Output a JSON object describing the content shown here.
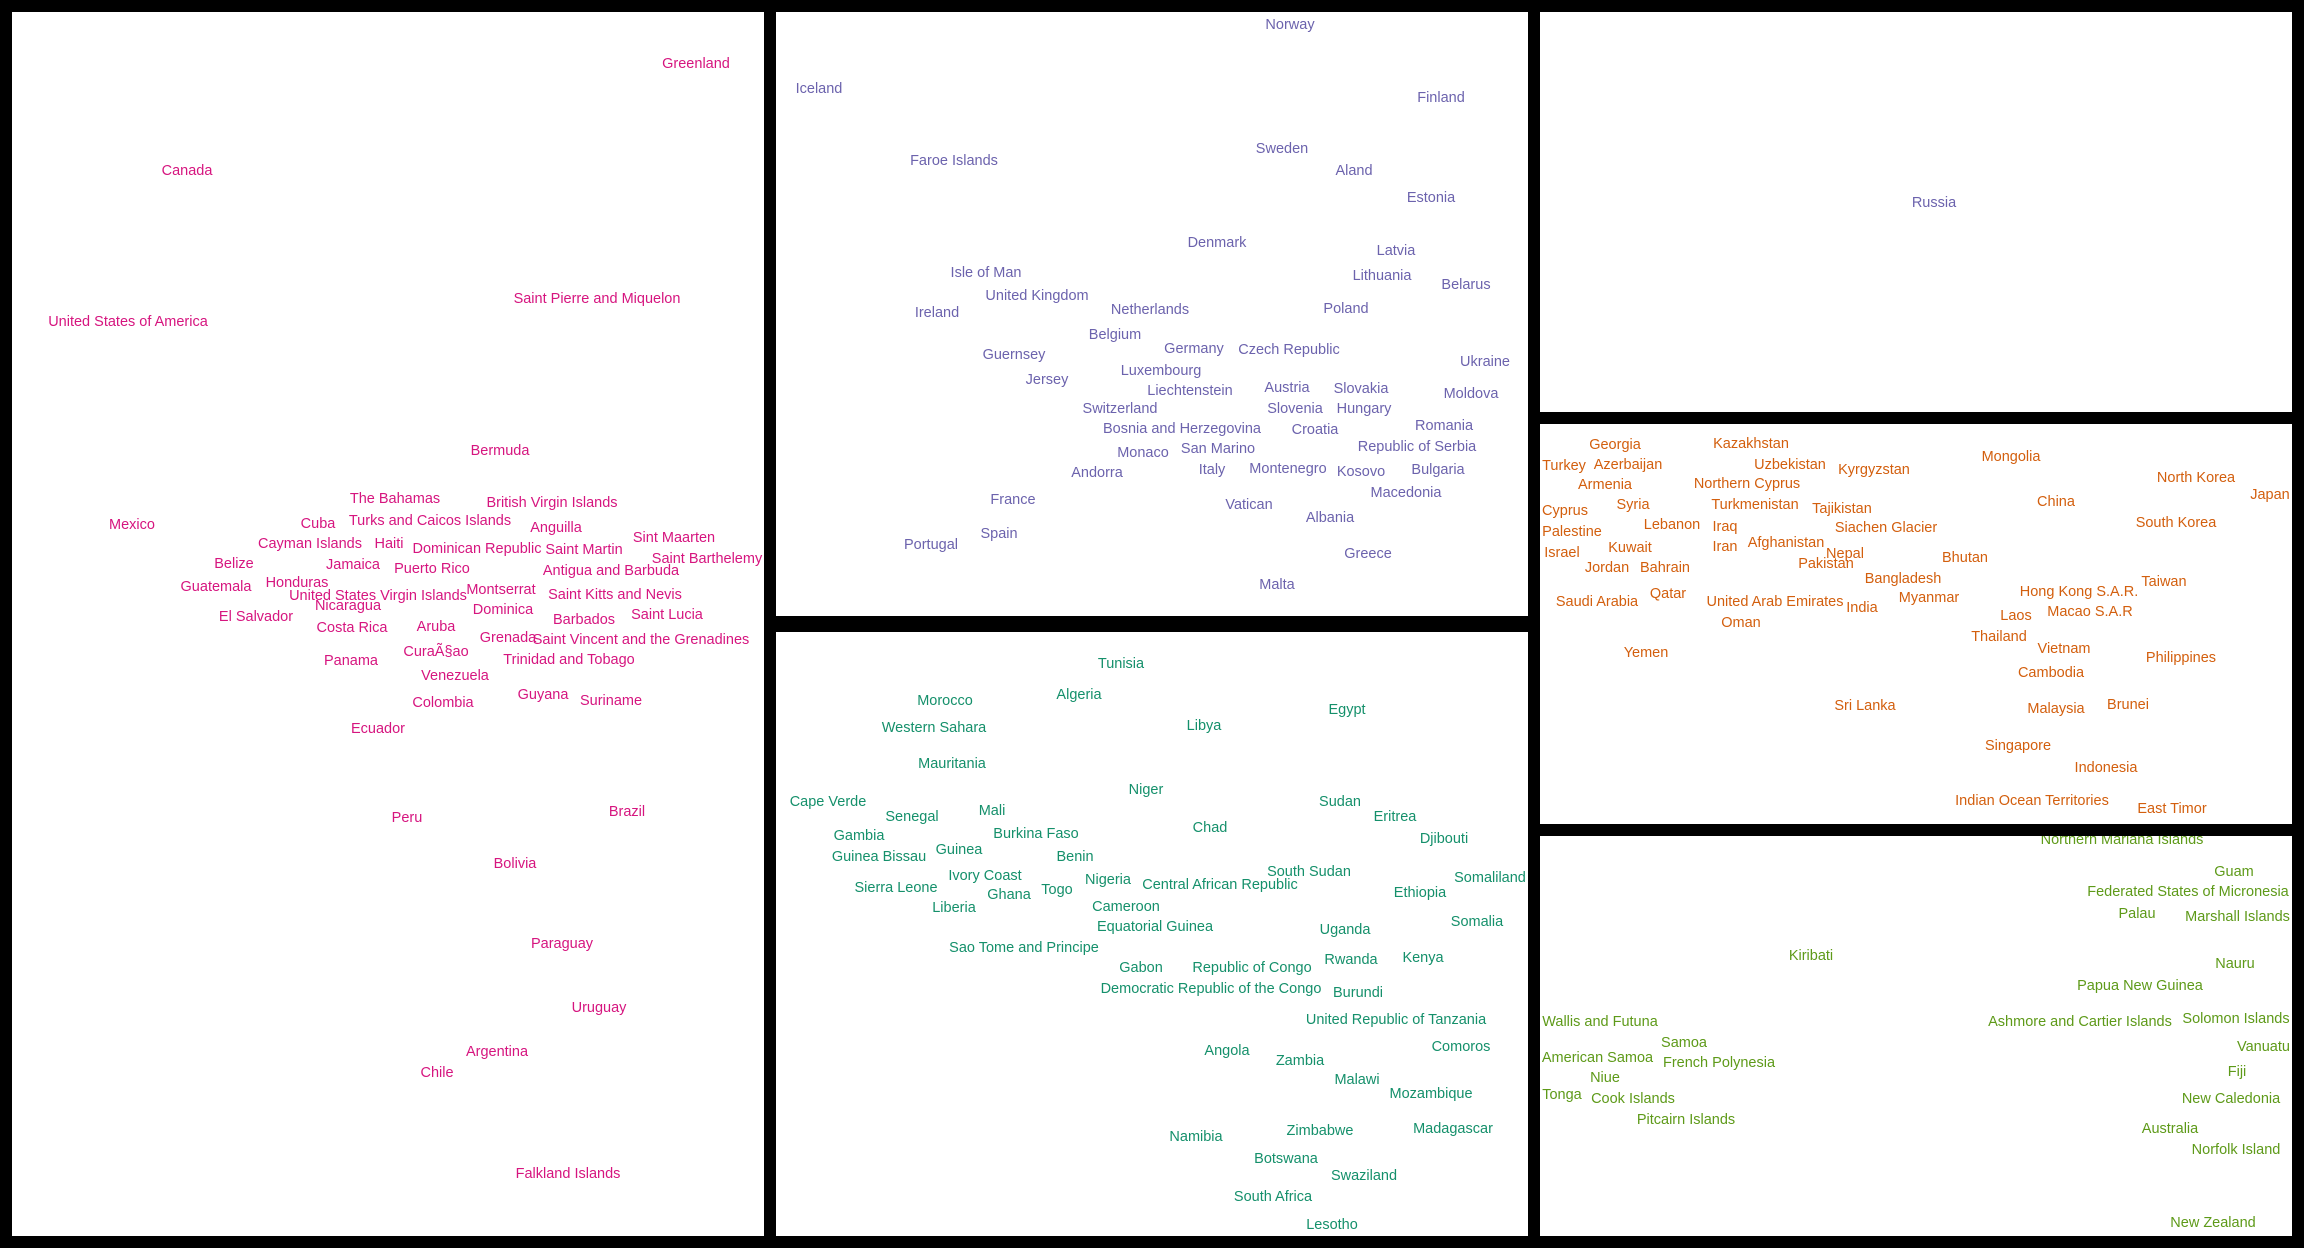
{
  "colors": {
    "americas": "#d6157f",
    "europe": "#6c63ad",
    "africa": "#15906b",
    "russia": "#6c63ad",
    "asia": "#d35f0e",
    "oceania": "#5e9a19"
  },
  "panels": {
    "americas": [
      "Greenland",
      "Canada",
      "United States of America",
      "Saint Pierre and Miquelon",
      "Bermuda",
      "The Bahamas",
      "British Virgin Islands",
      "Turks and Caicos Islands",
      "Cuba",
      "Mexico",
      "Anguilla",
      "Cayman Islands",
      "Haiti",
      "Dominican Republic",
      "Saint Martin",
      "Sint Maarten",
      "Saint Barthelemy",
      "Belize",
      "Jamaica",
      "Puerto Rico",
      "Antigua and Barbuda",
      "Guatemala",
      "Honduras",
      "United States Virgin Islands",
      "Montserrat",
      "Saint Kitts and Nevis",
      "Nicaragua",
      "Dominica",
      "El Salvador",
      "Barbados",
      "Saint Lucia",
      "Costa Rica",
      "Aruba",
      "Grenada",
      "Saint Vincent and the Grenadines",
      "CuraÃ§ao",
      "Panama",
      "Trinidad and Tobago",
      "Venezuela",
      "Colombia",
      "Guyana",
      "Suriname",
      "Ecuador",
      "Peru",
      "Brazil",
      "Bolivia",
      "Paraguay",
      "Uruguay",
      "Argentina",
      "Chile",
      "Falkland Islands"
    ],
    "europe": [
      "Norway",
      "Iceland",
      "Finland",
      "Faroe Islands",
      "Sweden",
      "Aland",
      "Estonia",
      "Denmark",
      "Latvia",
      "Isle of Man",
      "Lithuania",
      "United Kingdom",
      "Belarus",
      "Ireland",
      "Netherlands",
      "Poland",
      "Belgium",
      "Guernsey",
      "Germany",
      "Czech Republic",
      "Ukraine",
      "Luxembourg",
      "Jersey",
      "Liechtenstein",
      "Austria",
      "Slovakia",
      "Moldova",
      "Switzerland",
      "Slovenia",
      "Hungary",
      "Bosnia and Herzegovina",
      "Croatia",
      "Romania",
      "San Marino",
      "Republic of Serbia",
      "Monaco",
      "Andorra",
      "Italy",
      "Montenegro",
      "Kosovo",
      "Bulgaria",
      "France",
      "Macedonia",
      "Vatican",
      "Albania",
      "Spain",
      "Portugal",
      "Greece",
      "Malta"
    ],
    "africa": [
      "Tunisia",
      "Morocco",
      "Algeria",
      "Egypt",
      "Western Sahara",
      "Libya",
      "Mauritania",
      "Niger",
      "Cape Verde",
      "Sudan",
      "Mali",
      "Senegal",
      "Eritrea",
      "Chad",
      "Gambia",
      "Burkina Faso",
      "Djibouti",
      "Guinea Bissau",
      "Guinea",
      "Benin",
      "Ivory Coast",
      "South Sudan",
      "Somaliland",
      "Sierra Leone",
      "Nigeria",
      "Central African Republic",
      "Ghana",
      "Togo",
      "Ethiopia",
      "Liberia",
      "Cameroon",
      "Somalia",
      "Equatorial Guinea",
      "Uganda",
      "Sao Tome and Principe",
      "Rwanda",
      "Kenya",
      "Gabon",
      "Republic of Congo",
      "Democratic Republic of the Congo",
      "Burundi",
      "United Republic of Tanzania",
      "Comoros",
      "Angola",
      "Zambia",
      "Malawi",
      "Mozambique",
      "Zimbabwe",
      "Madagascar",
      "Namibia",
      "Botswana",
      "Swaziland",
      "South Africa",
      "Lesotho"
    ],
    "russia": [
      "Russia"
    ],
    "asia": [
      "Georgia",
      "Kazakhstan",
      "Mongolia",
      "Turkey",
      "Azerbaijan",
      "Uzbekistan",
      "Kyrgyzstan",
      "North Korea",
      "Armenia",
      "Northern Cyprus",
      "Japan",
      "China",
      "Cyprus",
      "Syria",
      "Turkmenistan",
      "Tajikistan",
      "Lebanon",
      "Iraq",
      "Siachen Glacier",
      "South Korea",
      "Palestine",
      "Kuwait",
      "Iran",
      "Afghanistan",
      "Israel",
      "Nepal",
      "Bhutan",
      "Jordan",
      "Bahrain",
      "Pakistan",
      "Bangladesh",
      "Hong Kong S.A.R.",
      "Taiwan",
      "Qatar",
      "Saudi Arabia",
      "United Arab Emirates",
      "Myanmar",
      "India",
      "Laos",
      "Macao S.A.R",
      "Oman",
      "Thailand",
      "Vietnam",
      "Yemen",
      "Philippines",
      "Cambodia",
      "Sri Lanka",
      "Malaysia",
      "Brunei",
      "Singapore",
      "Indonesia",
      "Indian Ocean Territories",
      "East Timor"
    ],
    "oceania": [
      "Northern Mariana Islands",
      "Guam",
      "Federated States of Micronesia",
      "Palau",
      "Marshall Islands",
      "Kiribati",
      "Nauru",
      "Papua New Guinea",
      "Wallis and Futuna",
      "Ashmore and Cartier Islands",
      "Solomon Islands",
      "Samoa",
      "Vanuatu",
      "American Samoa",
      "French Polynesia",
      "Niue",
      "Fiji",
      "Tonga",
      "Cook Islands",
      "New Caledonia",
      "Pitcairn Islands",
      "Australia",
      "Norfolk Island",
      "New Zealand"
    ]
  }
}
